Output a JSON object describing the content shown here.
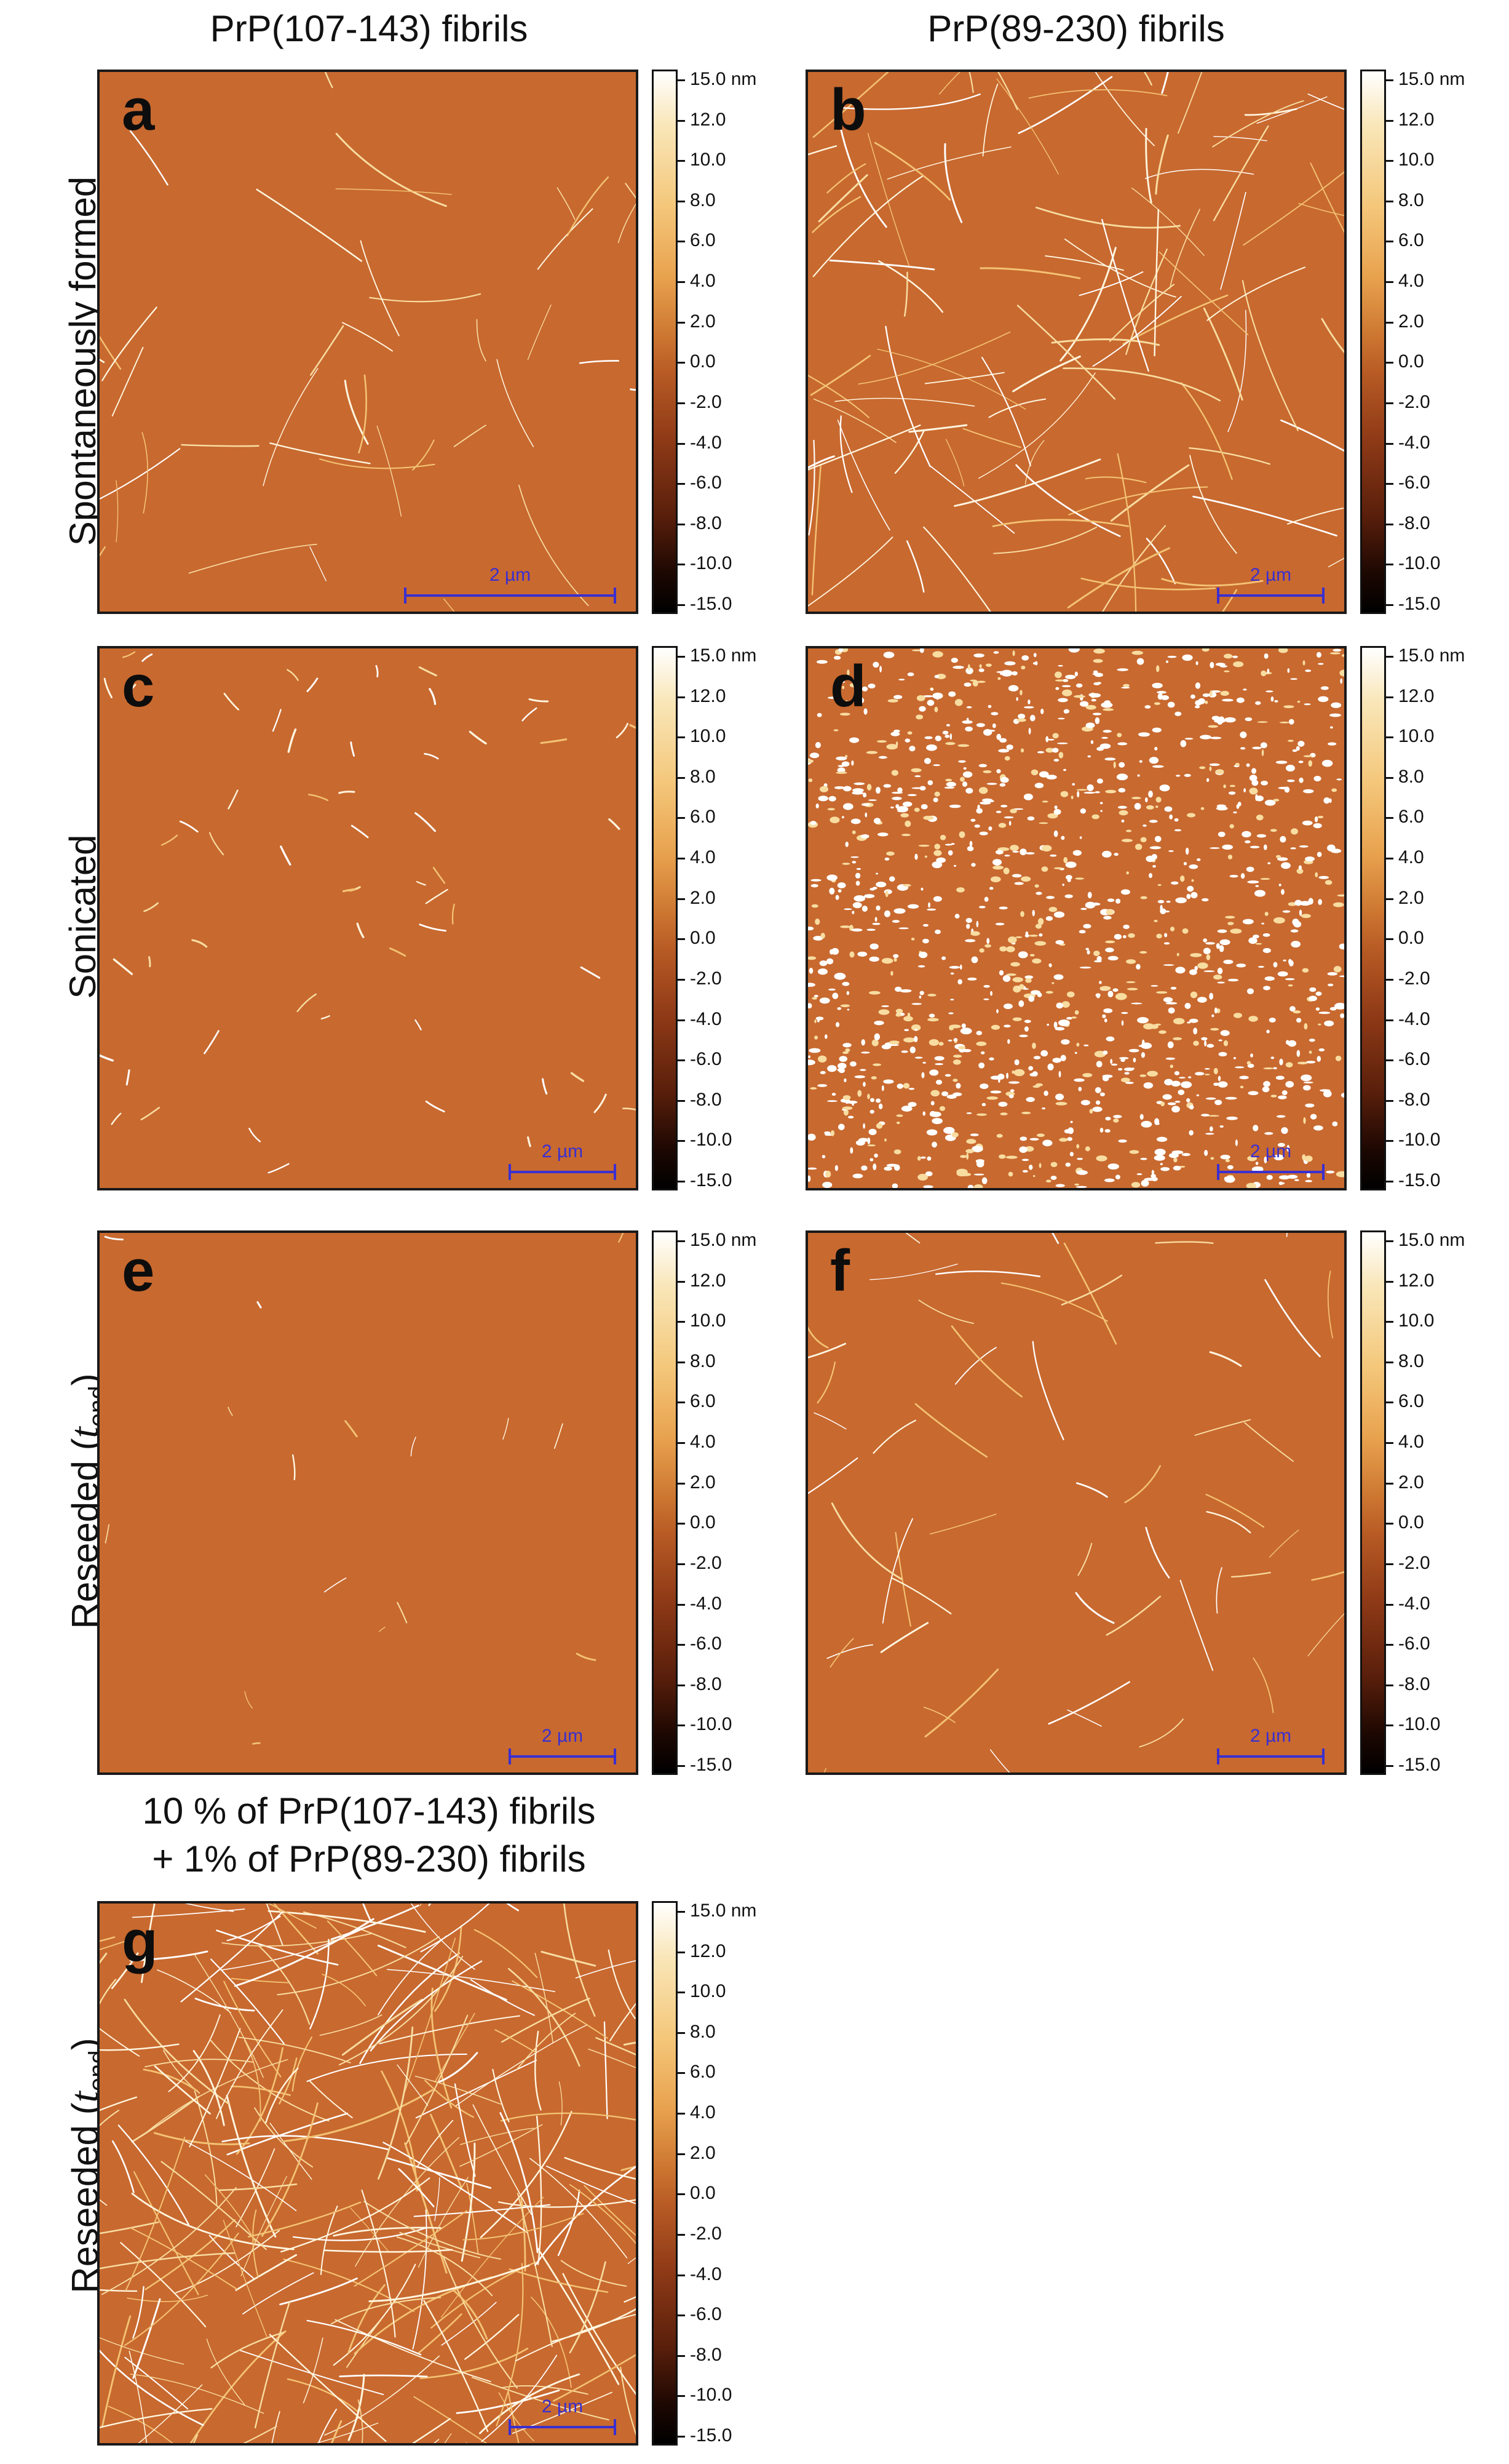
{
  "columns": {
    "left_title": "PrP(107-143) fibrils",
    "right_title": "PrP(89-230) fibrils"
  },
  "rows": {
    "row1": "Spontaneously formed",
    "row2": "Sonicated",
    "row3_main": "Reseeded (",
    "row3_t": "t",
    "row3_sub": "end",
    "row3_end": ")"
  },
  "mixture": {
    "line1": "10 % of PrP(107-143) fibrils",
    "line2": "+ 1% of PrP(89-230) fibrils"
  },
  "panels": [
    {
      "letter": "a",
      "scale": "2 µm"
    },
    {
      "letter": "b",
      "scale": "2 µm"
    },
    {
      "letter": "c",
      "scale": "2 µm"
    },
    {
      "letter": "d",
      "scale": "2 µm"
    },
    {
      "letter": "e",
      "scale": "2 µm"
    },
    {
      "letter": "f",
      "scale": "2 µm"
    },
    {
      "letter": "g",
      "scale": "2 µm"
    }
  ],
  "colorbar": {
    "ticks": [
      "15.0 nm",
      "12.0",
      "10.0",
      "8.0",
      "6.0",
      "4.0",
      "2.0",
      "0.0",
      "-2.0",
      "-4.0",
      "-6.0",
      "-8.0",
      "-10.0",
      "-15.0"
    ]
  }
}
